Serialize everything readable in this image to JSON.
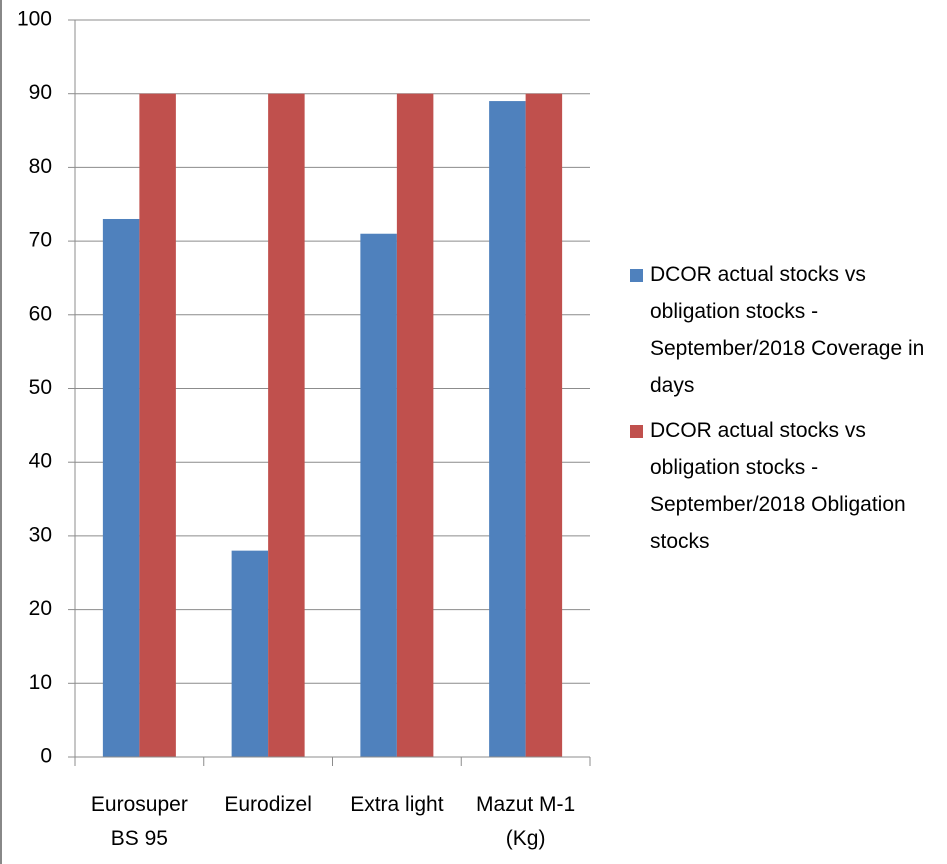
{
  "chart_data": {
    "type": "bar",
    "categories": [
      "Eurosuper BS 95",
      "Eurodizel",
      "Extra light",
      "Mazut M-1 (Kg)"
    ],
    "series": [
      {
        "name": "DCOR actual stocks vs obligation stocks - September/2018 Coverage in days",
        "color": "#4f81bd",
        "values": [
          73,
          28,
          71,
          89
        ]
      },
      {
        "name": "DCOR actual stocks vs obligation stocks - September/2018 Obligation stocks",
        "color": "#c0504d",
        "values": [
          90,
          90,
          90,
          90
        ]
      }
    ],
    "ylim": [
      0,
      100
    ],
    "yticks": [
      0,
      10,
      20,
      30,
      40,
      50,
      60,
      70,
      80,
      90,
      100
    ],
    "grid": true,
    "legend": "right"
  }
}
